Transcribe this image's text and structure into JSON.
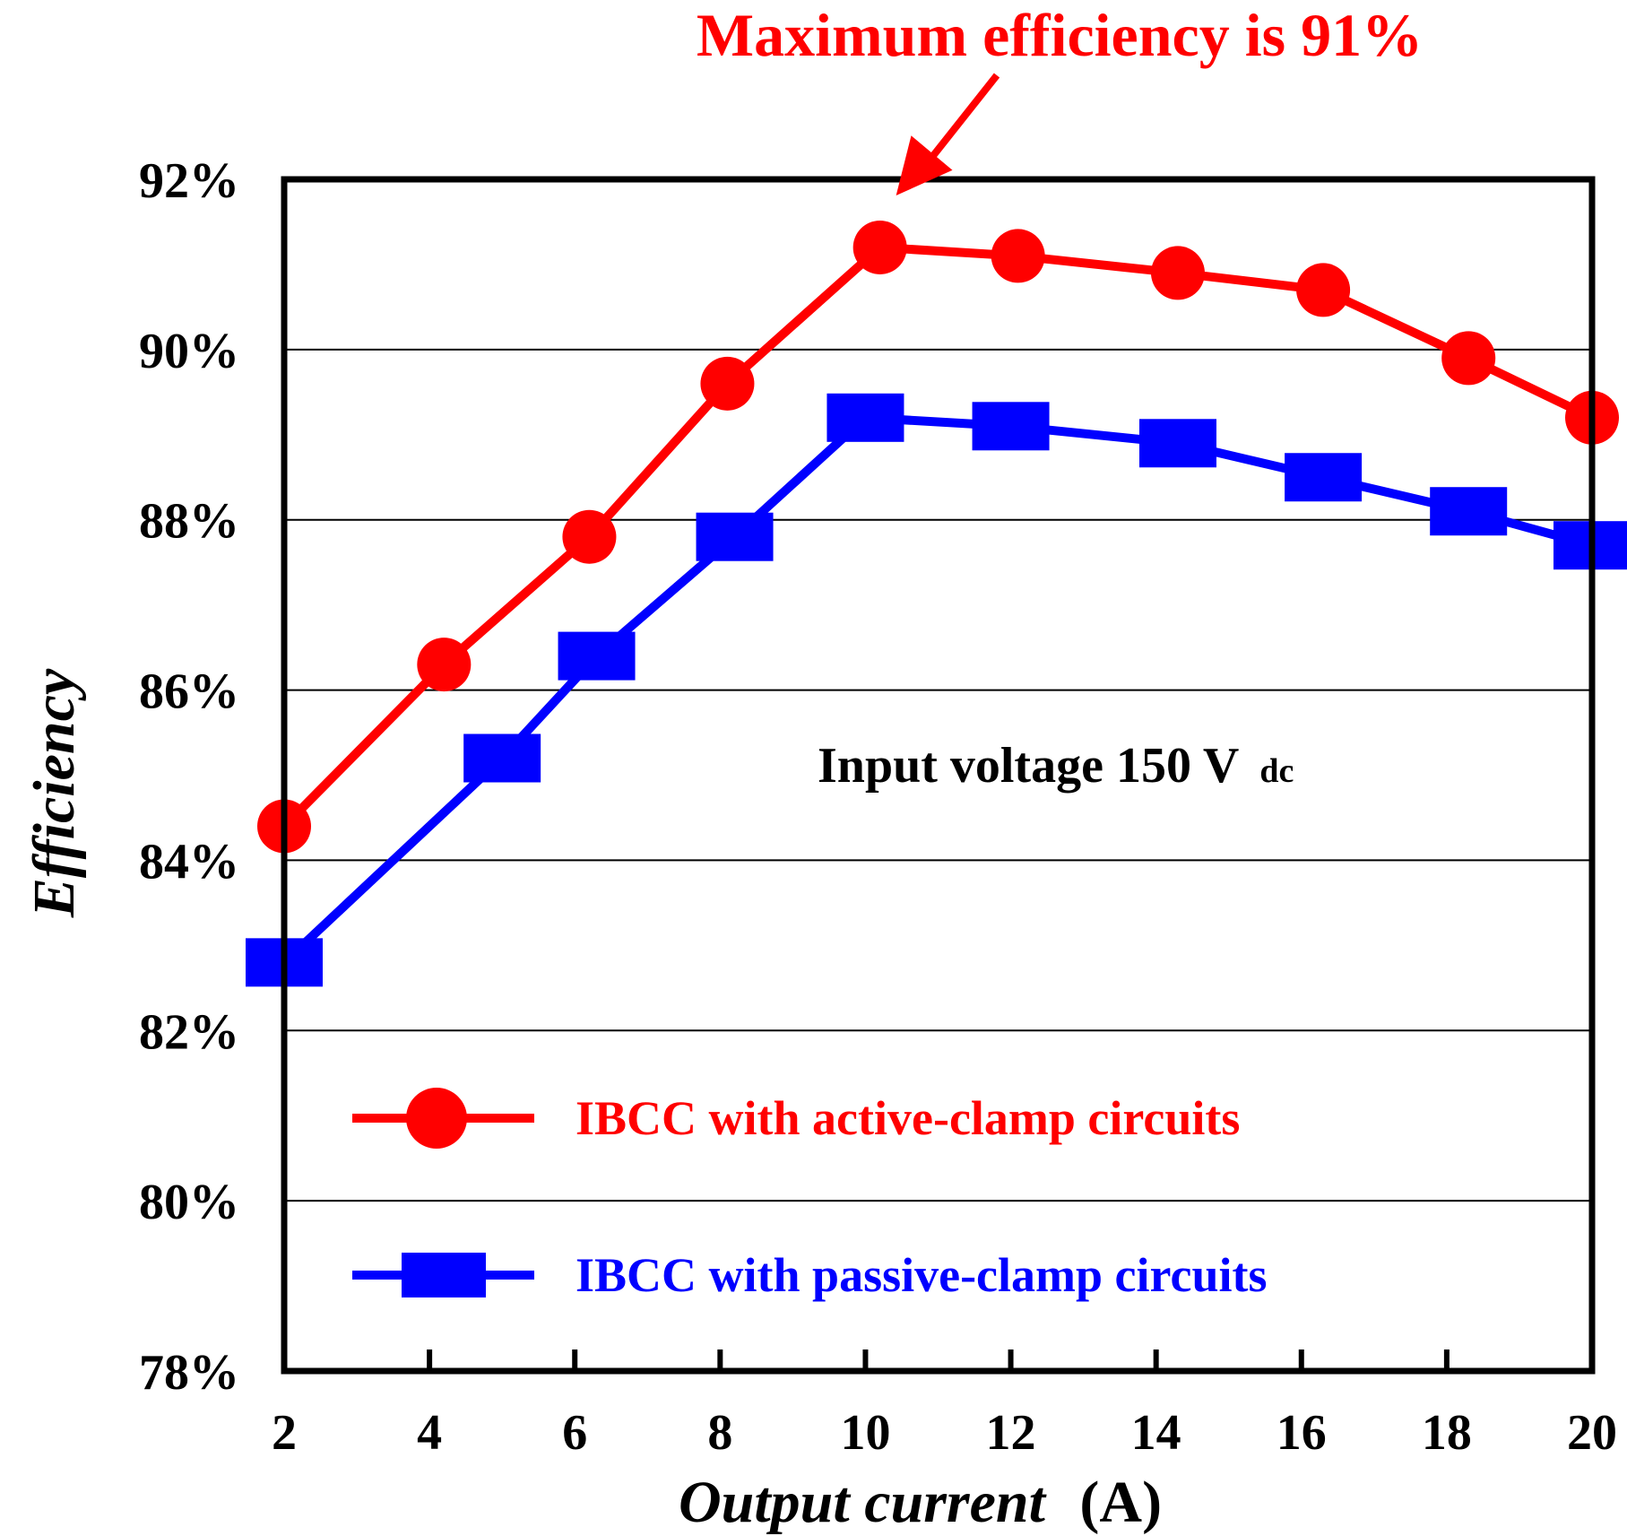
{
  "chart_data": {
    "type": "line",
    "x": [
      2,
      4,
      6,
      8,
      10,
      12,
      14,
      16,
      18,
      20
    ],
    "xticks": [
      "2",
      "4",
      "6",
      "8",
      "10",
      "12",
      "14",
      "16",
      "18",
      "20"
    ],
    "yticks": [
      "78%",
      "80%",
      "82%",
      "84%",
      "86%",
      "88%",
      "90%",
      "92%"
    ],
    "ylim": [
      78,
      92
    ],
    "xlim": [
      2,
      20
    ],
    "xlabel": "Output current",
    "xlabel_unit": "(A)",
    "ylabel": "Efficiency",
    "grid": "horizontal",
    "series": [
      {
        "name": "IBCC with active-clamp circuits",
        "color": "#ff0000",
        "marker": "circle",
        "x": [
          2,
          4.2,
          6.2,
          8.1,
          10.2,
          12.1,
          14.3,
          16.3,
          18.3,
          20
        ],
        "values": [
          84.4,
          86.3,
          87.8,
          89.6,
          91.2,
          91.1,
          90.9,
          90.7,
          89.9,
          89.2
        ]
      },
      {
        "name": "IBCC with passive-clamp circuits",
        "color": "#0000ff",
        "marker": "square",
        "x": [
          2,
          5,
          6.3,
          8.2,
          10,
          12,
          14.3,
          16.3,
          18.3,
          20
        ],
        "values": [
          82.8,
          85.2,
          86.4,
          87.8,
          89.2,
          89.1,
          88.9,
          88.5,
          88.1,
          87.7
        ]
      }
    ],
    "annotations": {
      "max_label": "Maximum efficiency is 91%",
      "max_point_x": 10.2,
      "max_point_y": 91.2,
      "condition_main": "Input voltage 150 V",
      "condition_sub": "dc"
    },
    "legend": {
      "placement": "bottom-left"
    }
  }
}
